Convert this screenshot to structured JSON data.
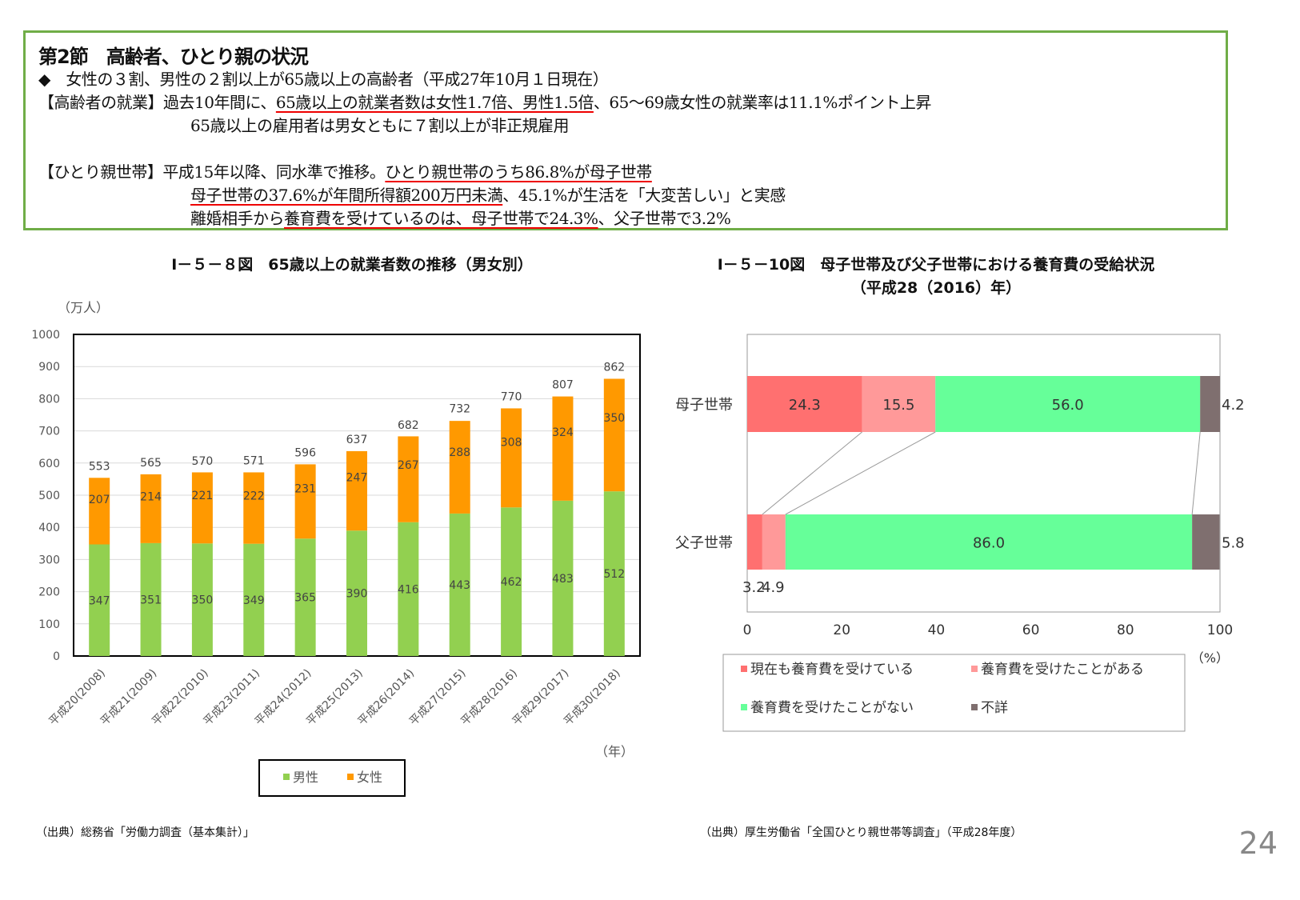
{
  "summary": {
    "title": "第2節　高齢者、ひとり親の状況",
    "lines": [
      [
        {
          "t": "◆　女性の３割、男性の２割以上が65歳以上の高齢者（平成27年10月１日現在）",
          "u": false
        }
      ],
      [
        {
          "t": "【高齢者の就業】過去10年間に、",
          "u": false
        },
        {
          "t": "65歳以上の就業者数は女性1.7倍、男性1.5倍",
          "u": true
        },
        {
          "t": "、65～69歳女性の就業率は11.1%ポイント上昇",
          "u": false
        }
      ],
      [
        {
          "t": "65歳以上の雇用者は男女ともに７割以上が非正規雇用",
          "u": false
        }
      ],
      [
        {
          "t": "【ひとり親世帯】平成15年以降、同水準で推移。",
          "u": false
        },
        {
          "t": "ひとり親世帯のうち86.8%が母子世帯",
          "u": true
        }
      ],
      [
        {
          "t": "母子世帯の37.6%が年間所得額200万円未満",
          "u": true
        },
        {
          "t": "、45.1%が生活を「大変苦しい」と実感",
          "u": false
        }
      ],
      [
        {
          "t": "離婚相手から",
          "u": false
        },
        {
          "t": "養育費を受けているのは、母子世帯で24.3%",
          "u": true
        },
        {
          "t": "、父子世帯で3.2%",
          "u": false
        }
      ]
    ]
  },
  "chart_data": [
    {
      "type": "bar",
      "stacked": true,
      "title": "Ⅰ－５－８図　65歳以上の就業者数の推移（男女別）",
      "ylabel": "（万人）",
      "xlabel": "（年）",
      "ylim": [
        0,
        1000
      ],
      "yticks": [
        0,
        100,
        200,
        300,
        400,
        500,
        600,
        700,
        800,
        900,
        1000
      ],
      "grid": true,
      "legend": "bottom",
      "categories": [
        "平成20(2008)",
        "平成21(2009)",
        "平成22(2010)",
        "平成23(2011)",
        "平成24(2012)",
        "平成25(2013)",
        "平成26(2014)",
        "平成27(2015)",
        "平成28(2016)",
        "平成29(2017)",
        "平成30(2018)"
      ],
      "series": [
        {
          "name": "男性",
          "color": "#92d050",
          "values": [
            347,
            351,
            350,
            349,
            365,
            390,
            416,
            443,
            462,
            483,
            512
          ]
        },
        {
          "name": "女性",
          "color": "#ff9900",
          "values": [
            207,
            214,
            221,
            222,
            231,
            247,
            267,
            288,
            308,
            324,
            350
          ]
        }
      ],
      "totals": [
        553,
        565,
        570,
        571,
        596,
        637,
        682,
        732,
        770,
        807,
        862
      ],
      "source": "（出典）総務省「労働力調査（基本集計）」"
    },
    {
      "type": "bar",
      "orientation": "horizontal",
      "stacked": true,
      "title": "Ⅰ－５－10図　母子世帯及び父子世帯における養育費の受給状況",
      "subtitle": "（平成28（2016）年）",
      "xlabel": "（%）",
      "xlim": [
        0,
        100
      ],
      "xticks": [
        0,
        20,
        40,
        60,
        80,
        100
      ],
      "legend": "bottom",
      "categories": [
        "母子世帯",
        "父子世帯"
      ],
      "series": [
        {
          "name": "現在も養育費を受けている",
          "color": "#ff7070",
          "values": [
            24.3,
            3.2
          ]
        },
        {
          "name": "養育費を受けたことがある",
          "color": "#ff9999",
          "values": [
            15.5,
            4.9
          ]
        },
        {
          "name": "養育費を受けたことがない",
          "color": "#66ff99",
          "values": [
            56.0,
            86.0
          ]
        },
        {
          "name": "不詳",
          "color": "#7f6f6f",
          "values": [
            4.2,
            5.8
          ]
        }
      ],
      "data_labels": [
        [
          "24.3",
          "15.5",
          "56.0",
          "4.2"
        ],
        [
          "3.2",
          "4.9",
          "86.0",
          "5.8"
        ]
      ],
      "source": "（出典）厚生労働省「全国ひとり親世帯等調査」（平成28年度）"
    }
  ],
  "page_number": "24"
}
